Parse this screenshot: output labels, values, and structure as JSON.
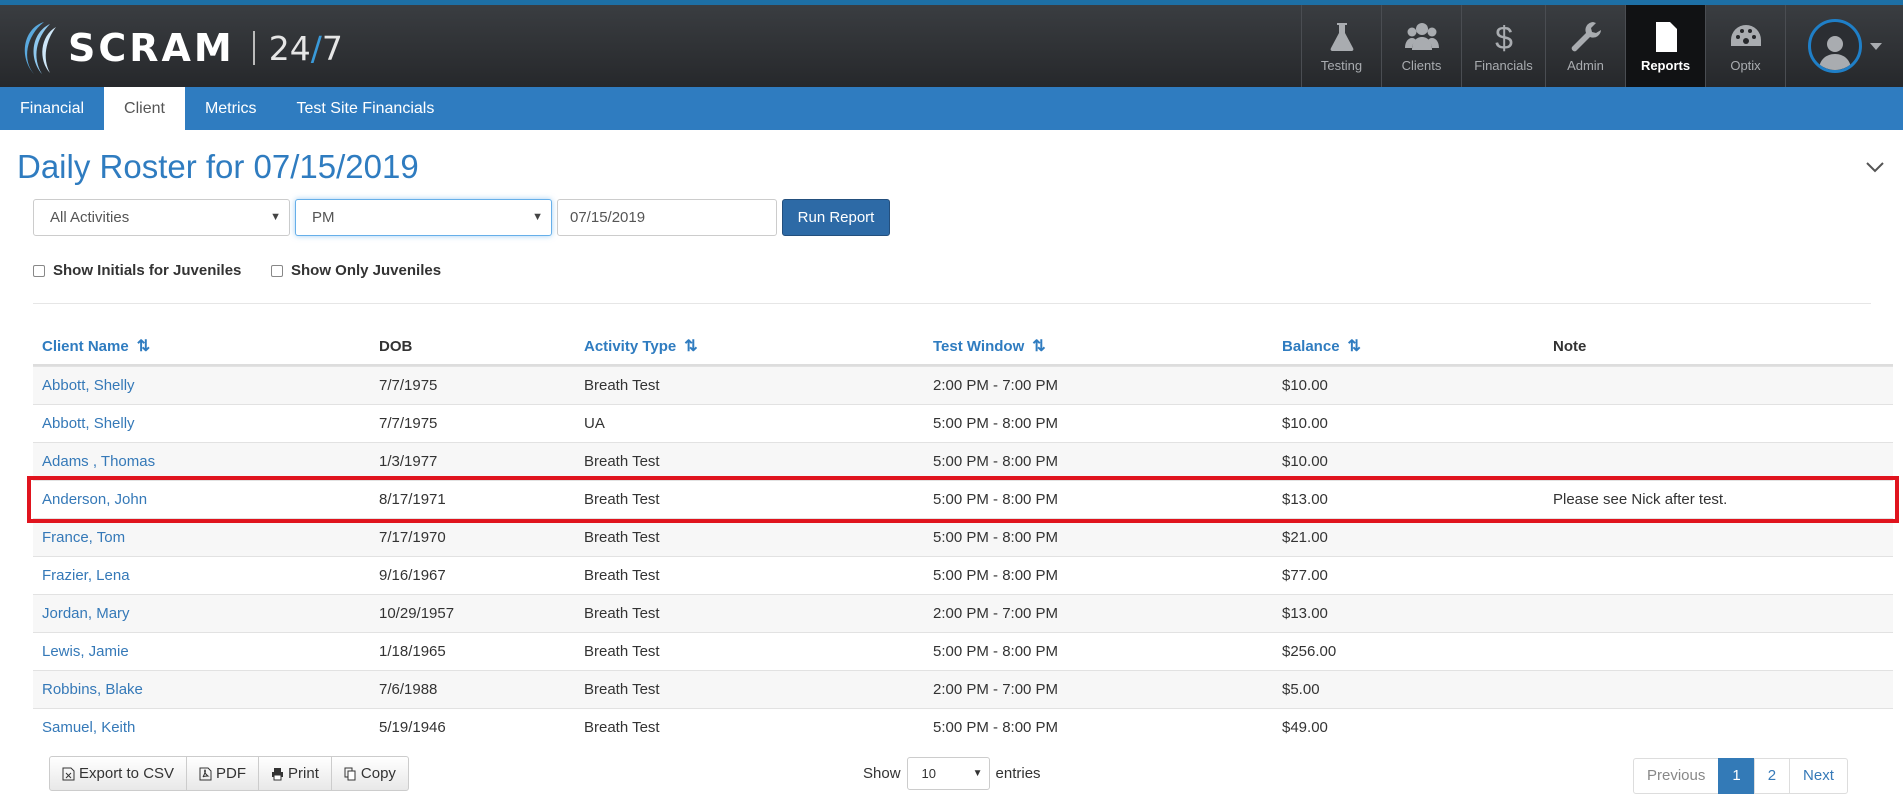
{
  "header": {
    "logo_text": "SCRAM",
    "logo_suffix_a": "24",
    "logo_suffix_slash": "/",
    "logo_suffix_b": "7",
    "nav": [
      {
        "label": "Testing",
        "icon": "flask-icon"
      },
      {
        "label": "Clients",
        "icon": "users-icon"
      },
      {
        "label": "Financials",
        "icon": "dollar-icon"
      },
      {
        "label": "Admin",
        "icon": "wrench-icon"
      },
      {
        "label": "Reports",
        "icon": "document-icon",
        "active": true
      },
      {
        "label": "Optix",
        "icon": "dashboard-icon"
      }
    ]
  },
  "subnav": [
    {
      "label": "Financial"
    },
    {
      "label": "Client",
      "active": true
    },
    {
      "label": "Metrics"
    },
    {
      "label": "Test Site Financials"
    }
  ],
  "page_title": "Daily Roster for 07/15/2019",
  "filters": {
    "activity": "All Activities",
    "period": "PM",
    "date": "07/15/2019",
    "run_label": "Run Report",
    "show_initials": "Show Initials for Juveniles",
    "show_juveniles": "Show Only Juveniles"
  },
  "table": {
    "headers": [
      "Client Name",
      "DOB",
      "Activity Type",
      "Test Window",
      "Balance",
      "Note"
    ],
    "rows": [
      [
        "Abbott, Shelly",
        "7/7/1975",
        "Breath Test",
        "2:00 PM - 7:00 PM",
        "$10.00",
        ""
      ],
      [
        "Abbott, Shelly",
        "7/7/1975",
        "UA",
        "5:00 PM - 8:00 PM",
        "$10.00",
        ""
      ],
      [
        "Adams , Thomas",
        "1/3/1977",
        "Breath Test",
        "5:00 PM - 8:00 PM",
        "$10.00",
        ""
      ],
      [
        "Anderson, John",
        "8/17/1971",
        "Breath Test",
        "5:00 PM - 8:00 PM",
        "$13.00",
        "Please see Nick after test."
      ],
      [
        "France, Tom",
        "7/17/1970",
        "Breath Test",
        "5:00 PM - 8:00 PM",
        "$21.00",
        ""
      ],
      [
        "Frazier, Lena",
        "9/16/1967",
        "Breath Test",
        "5:00 PM - 8:00 PM",
        "$77.00",
        ""
      ],
      [
        "Jordan, Mary",
        "10/29/1957",
        "Breath Test",
        "2:00 PM - 7:00 PM",
        "$13.00",
        ""
      ],
      [
        "Lewis, Jamie",
        "1/18/1965",
        "Breath Test",
        "5:00 PM - 8:00 PM",
        "$256.00",
        ""
      ],
      [
        "Robbins, Blake",
        "7/6/1988",
        "Breath Test",
        "2:00 PM - 7:00 PM",
        "$5.00",
        ""
      ],
      [
        "Samuel, Keith",
        "5/19/1946",
        "Breath Test",
        "5:00 PM - 8:00 PM",
        "$49.00",
        ""
      ]
    ]
  },
  "footer": {
    "export_csv": "Export to CSV",
    "pdf": "PDF",
    "print": "Print",
    "copy": "Copy",
    "show_label": "Show",
    "page_length": "10",
    "entries_label": "entries",
    "pagination": {
      "previous": "Previous",
      "pages": [
        "1",
        "2"
      ],
      "current": "1",
      "next": "Next"
    }
  }
}
